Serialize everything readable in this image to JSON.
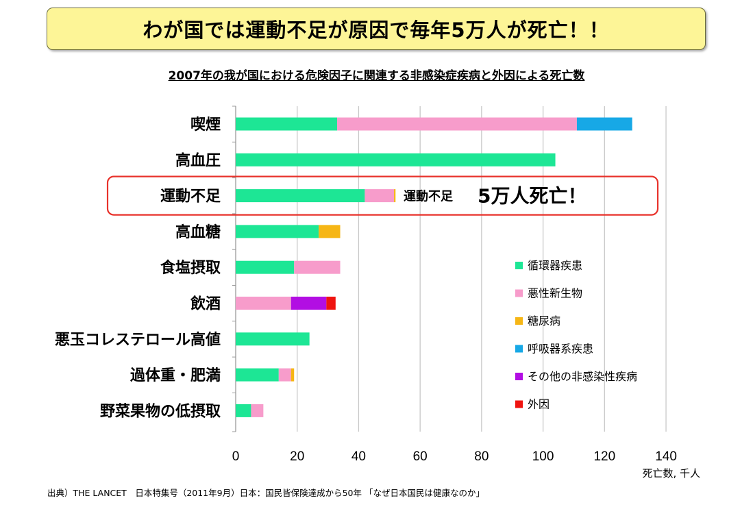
{
  "header": {
    "title": "わが国では運動不足が原因で毎年5万人が死亡！！",
    "subtitle": "2007年の我が国における危険因子に関連する非感染症疾病と外因による死亡数"
  },
  "chart_data": {
    "type": "bar",
    "orientation": "horizontal",
    "stacked": true,
    "categories": [
      "喫煙",
      "高血圧",
      "運動不足",
      "高血糖",
      "食塩摂取",
      "飲酒",
      "悪玉コレステロール高値",
      "過体重・肥満",
      "野菜果物の低摂取"
    ],
    "series": [
      {
        "name": "循環器疾患",
        "color": "#1de695",
        "values": [
          33,
          104,
          42,
          27,
          19,
          0,
          24,
          14,
          5
        ]
      },
      {
        "name": "悪性新生物",
        "color": "#f79ccb",
        "values": [
          78,
          0,
          9.5,
          0,
          15,
          18,
          0,
          4,
          4
        ]
      },
      {
        "name": "糖尿病",
        "color": "#f6b615",
        "values": [
          0,
          0,
          0.5,
          7,
          0,
          0,
          0,
          1,
          0
        ]
      },
      {
        "name": "呼吸器系疾患",
        "color": "#17a8e6",
        "values": [
          18,
          0,
          0,
          0,
          0,
          0,
          0,
          0,
          0
        ]
      },
      {
        "name": "その他の非感染性疾病",
        "color": "#b20ee3",
        "values": [
          0,
          0,
          0,
          0,
          0,
          11.5,
          0,
          0,
          0
        ]
      },
      {
        "name": "外因",
        "color": "#ef1410",
        "values": [
          0,
          0,
          0,
          0,
          0,
          3,
          0,
          0,
          0
        ]
      }
    ],
    "xlim": [
      0,
      140
    ],
    "xticks": [
      0,
      20,
      40,
      60,
      80,
      100,
      120,
      140
    ],
    "xlabel": "死亡数, 千人",
    "grid": true,
    "legend_position": "bottom-right",
    "highlight": {
      "category": "運動不足",
      "label_prefix": "運動不足",
      "label_emph": "5万人死亡！",
      "color": "#e8322b"
    }
  },
  "footer": {
    "source": "出典）THE LANCET　日本特集号（2011年9月）日本：国民皆保険達成から50年 「なぜ日本国民は健康なのか」"
  }
}
